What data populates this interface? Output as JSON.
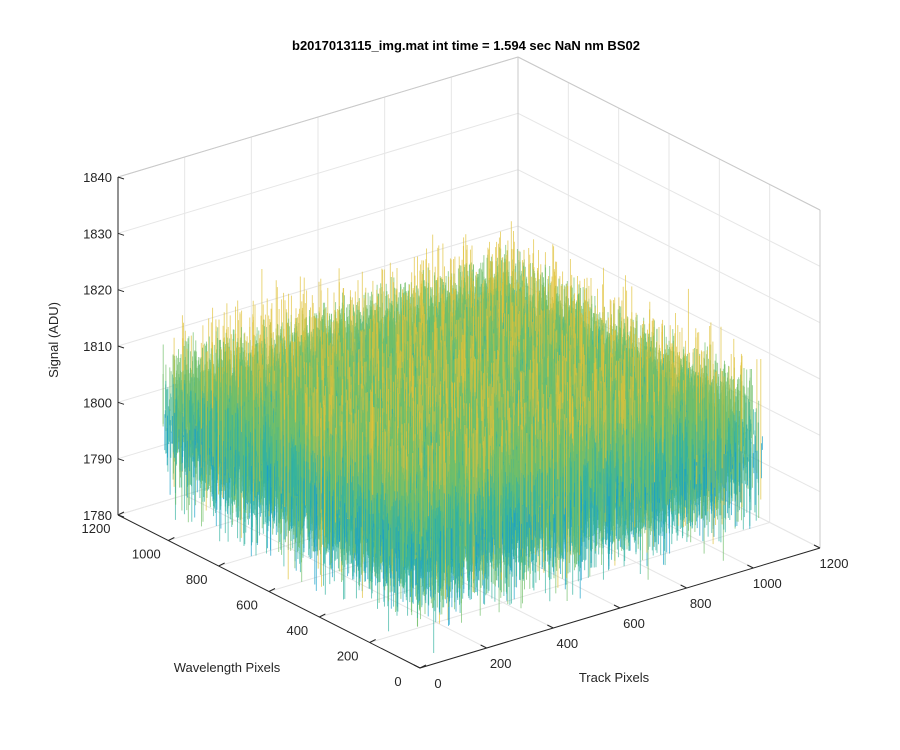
{
  "chart_data": {
    "type": "surface",
    "title": "b2017013115_img.mat int time = 1.594 sec  NaN nm BS02",
    "xlabel": "Track Pixels",
    "ylabel": "Wavelength Pixels",
    "zlabel": "Signal (ADU)",
    "xlim": [
      0,
      1200
    ],
    "ylim": [
      0,
      1200
    ],
    "zlim": [
      1780,
      1840
    ],
    "xticks": [
      "0",
      "200",
      "400",
      "600",
      "800",
      "1000",
      "1200"
    ],
    "yticks": [
      "0",
      "200",
      "400",
      "600",
      "800",
      "1000",
      "1200"
    ],
    "zticks": [
      "1780",
      "1790",
      "1800",
      "1810",
      "1820",
      "1830",
      "1840"
    ],
    "grid": true,
    "surface": {
      "x_range": [
        0,
        1024
      ],
      "y_range": [
        0,
        1024
      ],
      "mean_signal": 1801,
      "signal_min": 1780,
      "signal_max": 1835,
      "colormap": [
        "#0072bd",
        "#1aa0c8",
        "#34b3a0",
        "#72bf6a",
        "#e0c23a"
      ]
    }
  }
}
